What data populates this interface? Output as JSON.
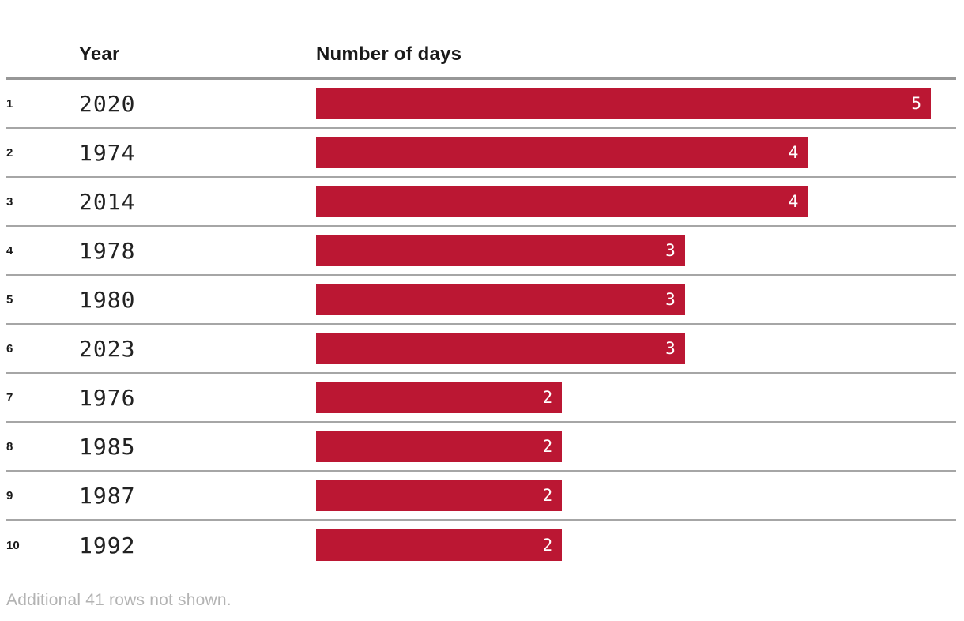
{
  "table": {
    "columns": {
      "rank": "",
      "year": "Year",
      "days": "Number of days"
    },
    "rows": [
      {
        "rank": "1",
        "year": "2020",
        "days": 5
      },
      {
        "rank": "2",
        "year": "1974",
        "days": 4
      },
      {
        "rank": "3",
        "year": "2014",
        "days": 4
      },
      {
        "rank": "4",
        "year": "1978",
        "days": 3
      },
      {
        "rank": "5",
        "year": "1980",
        "days": 3
      },
      {
        "rank": "6",
        "year": "2023",
        "days": 3
      },
      {
        "rank": "7",
        "year": "1976",
        "days": 2
      },
      {
        "rank": "8",
        "year": "1985",
        "days": 2
      },
      {
        "rank": "9",
        "year": "1987",
        "days": 2
      },
      {
        "rank": "10",
        "year": "1992",
        "days": 2
      }
    ],
    "footer": "Additional 41 rows not shown."
  },
  "chart_data": {
    "type": "bar",
    "orientation": "horizontal",
    "categories": [
      "2020",
      "1974",
      "2014",
      "1978",
      "1980",
      "2023",
      "1976",
      "1985",
      "1987",
      "1992"
    ],
    "values": [
      5,
      4,
      4,
      3,
      3,
      3,
      2,
      2,
      2,
      2
    ],
    "title": "",
    "xlabel": "Number of days",
    "ylabel": "Year",
    "xlim": [
      0,
      5
    ],
    "grid": false,
    "legend": "none",
    "data_labels": "inside-end",
    "note": "Additional 41 rows not shown."
  },
  "colors": {
    "bar": "#bb1733",
    "bar_label": "#ffffff",
    "rule_heavy": "#979797",
    "rule_light": "#a6a6a6",
    "header_text": "#1a1a1a",
    "year_text": "#222222",
    "footer_text": "#b3b3b3",
    "background": "#ffffff"
  }
}
